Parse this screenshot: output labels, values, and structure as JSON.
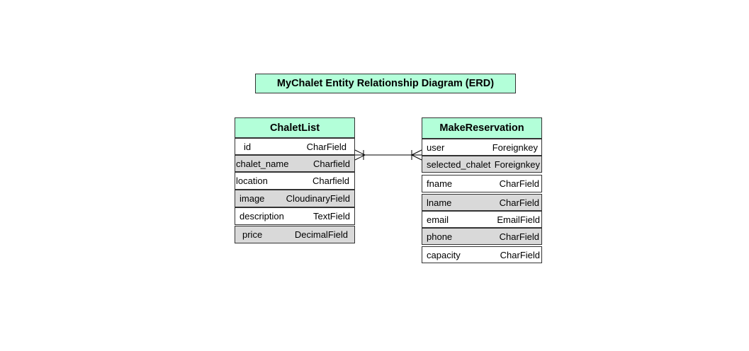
{
  "diagram": {
    "title": "MyChalet Entity Relationship Diagram (ERD)",
    "colors": {
      "header_fill": "#b3ffd9",
      "shaded_row_fill": "#d9d9d9",
      "plain_row_fill": "#ffffff",
      "border": "#333333"
    },
    "entities": {
      "chaletlist": {
        "name": "ChaletList",
        "fields": [
          {
            "name": "id",
            "type": "CharField",
            "shaded": false
          },
          {
            "name": "chalet_name",
            "type": "Charfield",
            "shaded": true
          },
          {
            "name": "location",
            "type": "Charfield",
            "shaded": false
          },
          {
            "name": "image",
            "type": "CloudinaryField",
            "shaded": true
          },
          {
            "name": "description",
            "type": "TextField",
            "shaded": false
          },
          {
            "name": "price",
            "type": "DecimalField",
            "shaded": true
          }
        ]
      },
      "makereservation": {
        "name": "MakeReservation",
        "fields": [
          {
            "name": "user",
            "type": "Foreignkey",
            "shaded": false
          },
          {
            "name": "selected_chalet",
            "type": "Foreignkey",
            "shaded": true
          },
          {
            "name": "fname",
            "type": "CharField",
            "shaded": false
          },
          {
            "name": "lname",
            "type": "CharField",
            "shaded": true
          },
          {
            "name": "email",
            "type": "EmailField",
            "shaded": false
          },
          {
            "name": "phone",
            "type": "CharField",
            "shaded": true
          },
          {
            "name": "capacity",
            "type": "CharField",
            "shaded": false
          }
        ]
      }
    },
    "relationship": {
      "from": "ChaletList",
      "to": "MakeReservation",
      "from_end": "one-and-only-one",
      "to_end": "one-or-many"
    }
  }
}
